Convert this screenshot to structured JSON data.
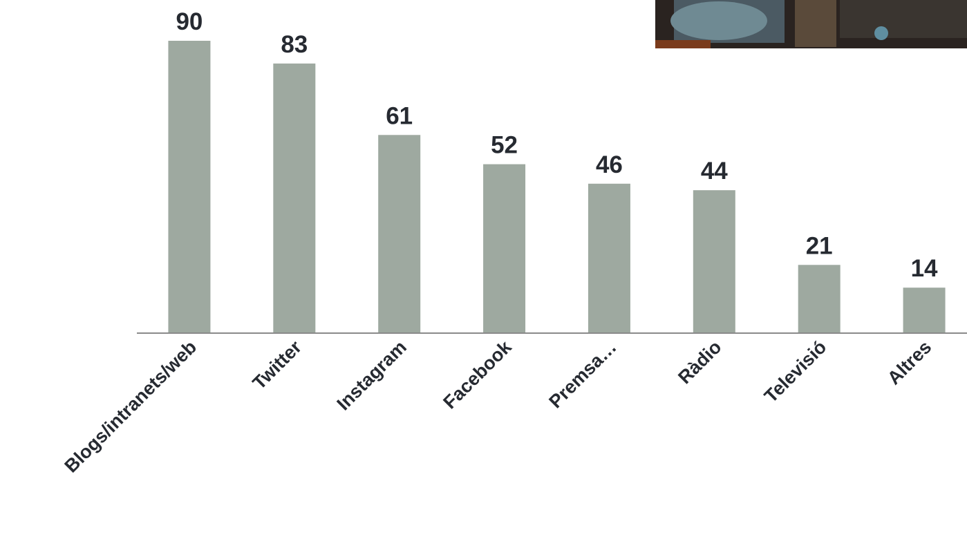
{
  "chart_data": {
    "type": "bar",
    "categories": [
      "Blogs/intranets/web",
      "Twitter",
      "Instagram",
      "Facebook",
      "Premsa…",
      "Ràdio",
      "Televisió",
      "Altres"
    ],
    "values": [
      90,
      83,
      61,
      52,
      46,
      44,
      21,
      14
    ],
    "color": "#9ea9a0",
    "ylim": [
      0,
      90
    ]
  }
}
